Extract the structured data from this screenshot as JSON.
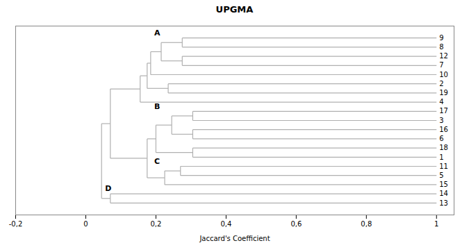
{
  "chart_data": {
    "type": "dendrogram",
    "title": "UPGMA",
    "xlabel": "Jaccard's Coefficient",
    "xlim": [
      -0.2,
      1.05
    ],
    "xticks": [
      {
        "value": -0.2,
        "label": "-0,2"
      },
      0,
      {
        "value": 0.2,
        "label": "0,2"
      },
      {
        "value": 0.4,
        "label": "0,4"
      },
      {
        "value": 0.6,
        "label": "0,6"
      },
      {
        "value": 0.8,
        "label": "0,8"
      },
      1
    ],
    "grid": false,
    "tick_labels": "x",
    "color": "#b0b0b0",
    "leaf_value": 1.0,
    "tree": {
      "value": 0.045,
      "children": [
        {
          "value": 0.07,
          "children": [
            {
              "value": 0.155,
              "label": "A",
              "label_x": 0.195,
              "children": [
                {
                  "value": 0.175,
                  "children": [
                    {
                      "value": 0.185,
                      "children": [
                        {
                          "value": 0.215,
                          "children": [
                            {
                              "value": 0.275,
                              "children": [
                                {
                                  "name": "9"
                                },
                                {
                                  "name": "8"
                                }
                              ]
                            },
                            {
                              "value": 0.275,
                              "children": [
                                {
                                  "name": "12"
                                },
                                {
                                  "name": "7"
                                }
                              ]
                            }
                          ]
                        },
                        {
                          "name": "10"
                        }
                      ]
                    },
                    {
                      "value": 0.235,
                      "children": [
                        {
                          "name": "2"
                        },
                        {
                          "name": "19"
                        }
                      ]
                    }
                  ]
                },
                {
                  "name": "4"
                }
              ]
            },
            {
              "value": 0.175,
              "children": [
                {
                  "value": 0.2,
                  "label": "B",
                  "label_x": 0.195,
                  "children": [
                    {
                      "value": 0.245,
                      "children": [
                        {
                          "value": 0.305,
                          "children": [
                            {
                              "name": "17"
                            },
                            {
                              "name": "3"
                            }
                          ]
                        },
                        {
                          "value": 0.305,
                          "children": [
                            {
                              "name": "16"
                            },
                            {
                              "name": "6"
                            }
                          ]
                        }
                      ]
                    },
                    {
                      "value": 0.305,
                      "children": [
                        {
                          "name": "18"
                        },
                        {
                          "name": "1"
                        }
                      ]
                    }
                  ]
                },
                {
                  "value": 0.225,
                  "label": "C",
                  "label_x": 0.195,
                  "children": [
                    {
                      "value": 0.27,
                      "children": [
                        {
                          "name": "11"
                        },
                        {
                          "name": "5"
                        }
                      ]
                    },
                    {
                      "name": "15"
                    }
                  ]
                }
              ]
            }
          ]
        },
        {
          "value": 0.07,
          "label": "D",
          "label_x": 0.055,
          "children": [
            {
              "name": "14"
            },
            {
              "name": "13"
            }
          ]
        }
      ]
    }
  }
}
